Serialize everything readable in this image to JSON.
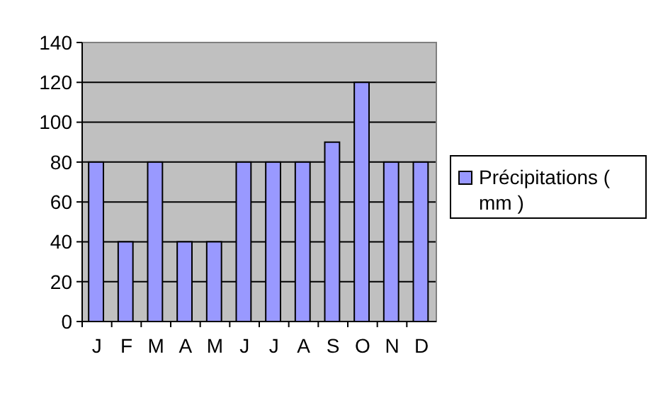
{
  "chart_data": {
    "type": "bar",
    "categories": [
      "J",
      "F",
      "M",
      "A",
      "M",
      "J",
      "J",
      "A",
      "S",
      "O",
      "N",
      "D"
    ],
    "series": [
      {
        "name": "Précipitations ( mm )",
        "color": "#9999ff",
        "values": [
          80,
          40,
          80,
          40,
          40,
          80,
          80,
          80,
          90,
          120,
          80,
          80
        ]
      }
    ],
    "ylim": [
      0,
      140
    ],
    "yticks": [
      0,
      20,
      40,
      60,
      80,
      100,
      120,
      140
    ],
    "grid": "y",
    "legend": "right"
  }
}
